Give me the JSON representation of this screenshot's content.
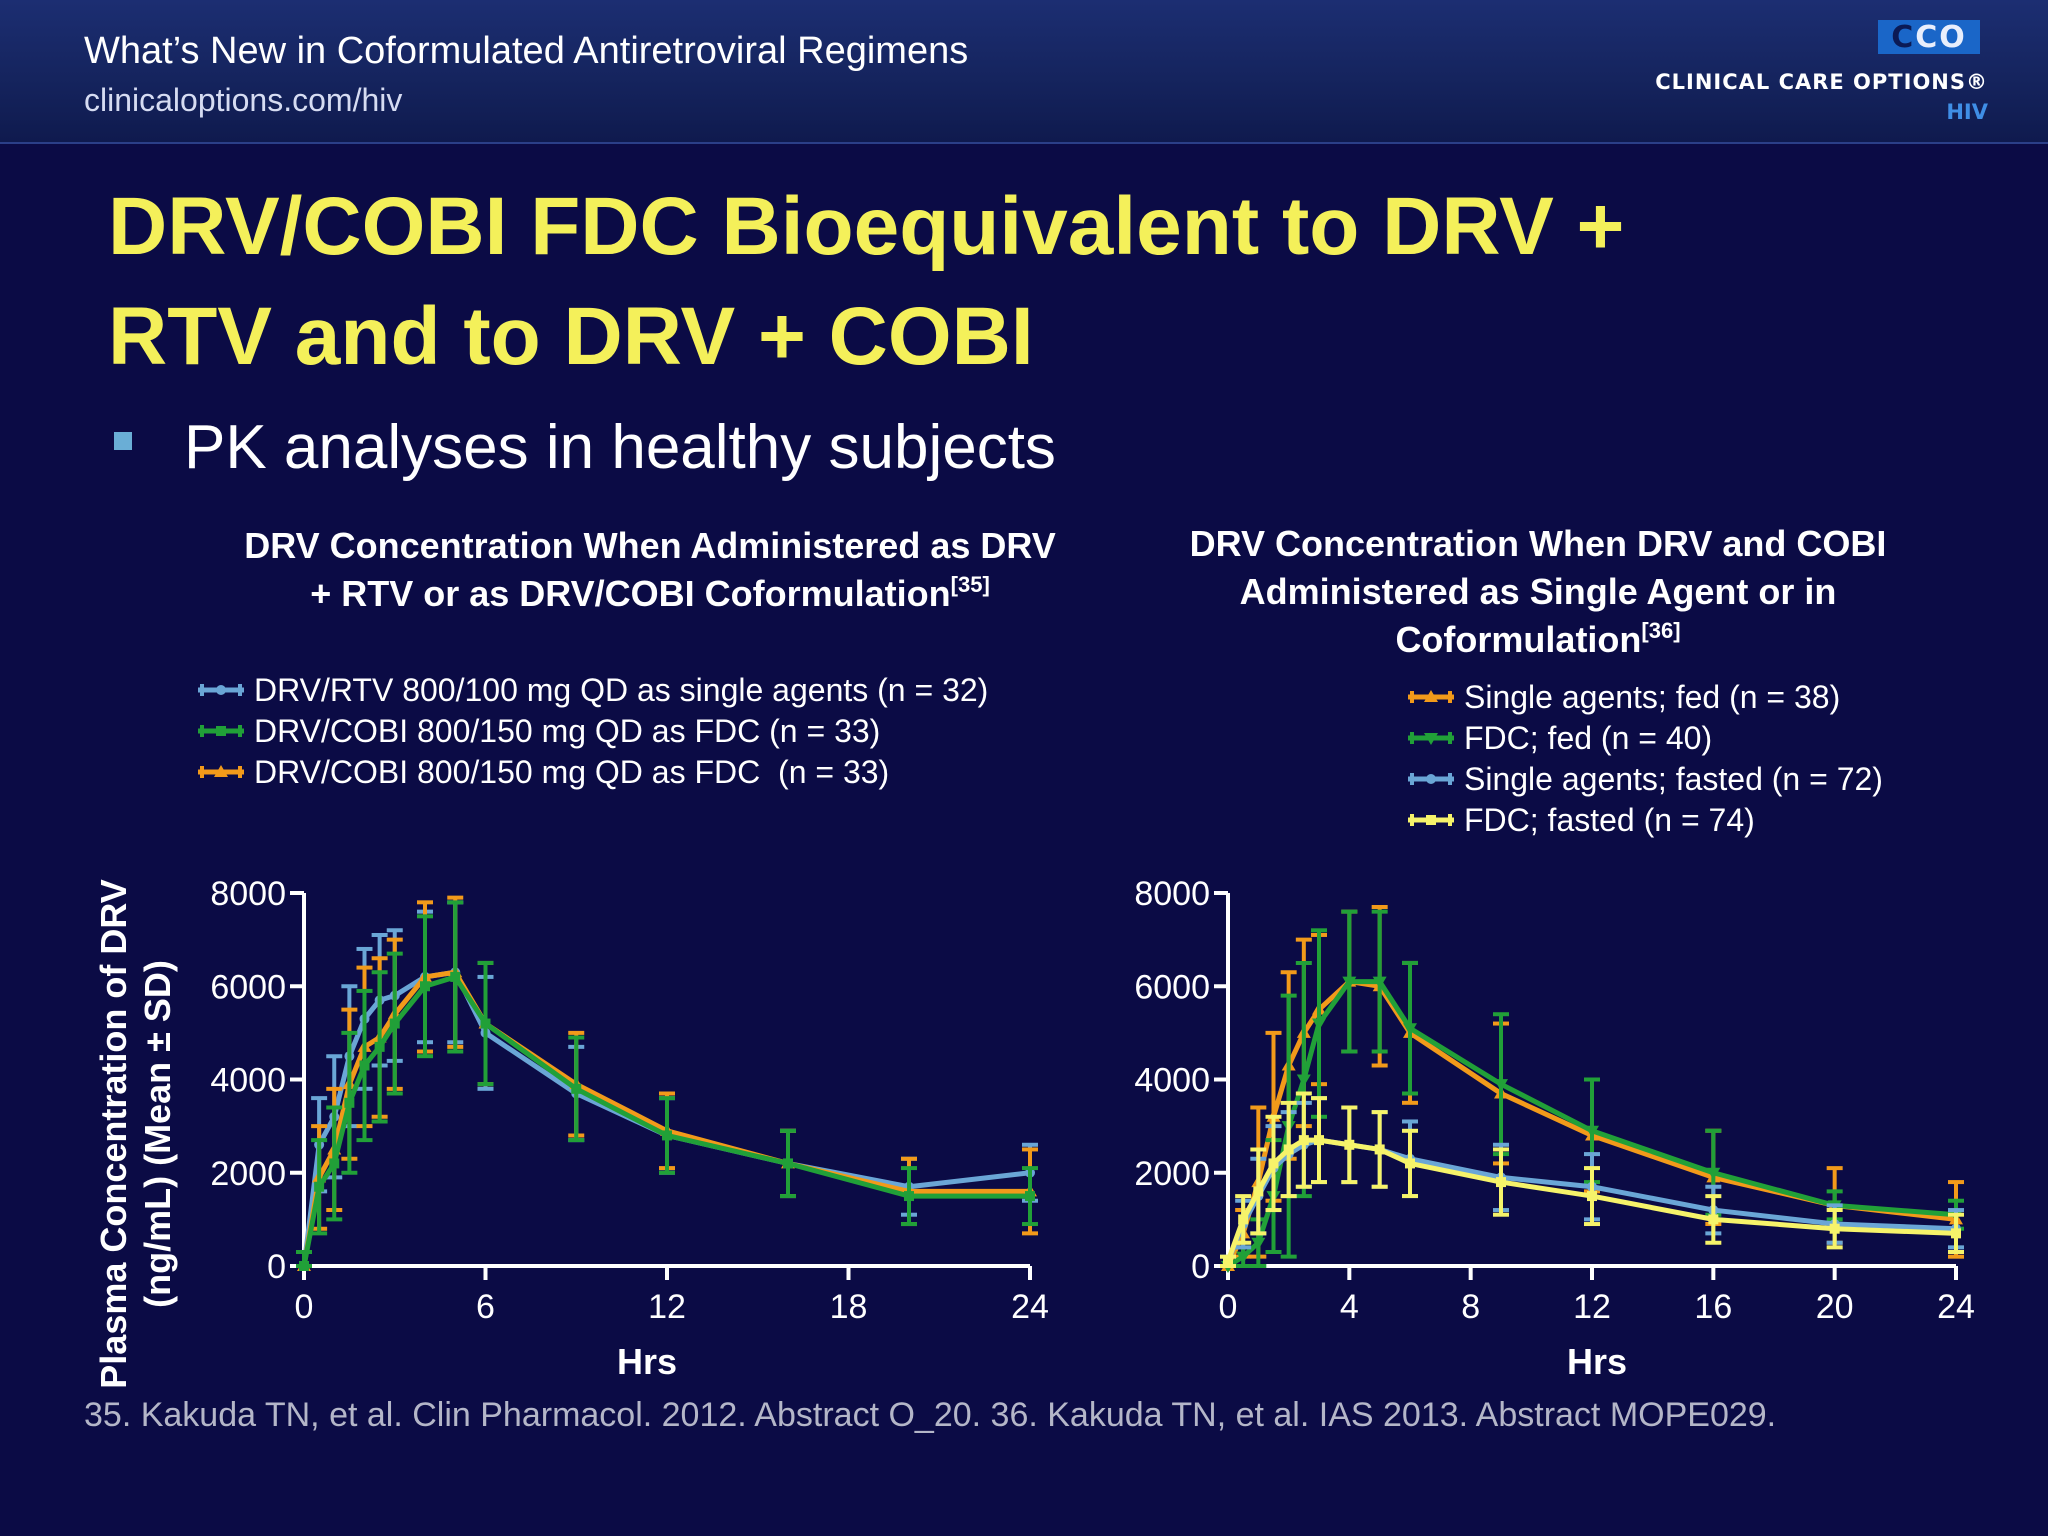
{
  "header": {
    "course_title": "What’s New in Coformulated Antiretroviral Regimens",
    "url": "clinicaloptions.com/hiv",
    "logo_mark_c": "C",
    "logo_mark_co": "CO",
    "logo_name": "CLINICAL CARE OPTIONS®",
    "logo_sub": "HIV"
  },
  "slide": {
    "title_line1": "DRV/COBI FDC Bioequivalent to DRV +",
    "title_line2": "RTV and to DRV + COBI",
    "bullet": "PK analyses in healthy subjects"
  },
  "shared_ylabel_line1": "Plasma Concentration of DRV",
  "shared_ylabel_line2": "(ng/mL) (Mean ± SD)",
  "footnote": "35. Kakuda TN, et al. Clin Pharmacol. 2012. Abstract O_20. 36. Kakuda TN, et al. IAS 2013. Abstract MOPE029.",
  "colors": {
    "blue": "#6aa6d6",
    "green": "#21a038",
    "orange": "#f29a1a",
    "yellow": "#f6f36a",
    "axis": "#ffffff",
    "title": "#f4f05a",
    "background": "#0b0b45"
  },
  "chart_data": [
    {
      "type": "line",
      "title_line1": "DRV Concentration When Administered as DRV",
      "title_line2": "+ RTV or as DRV/COBI Coformulation",
      "title_ref": "[35]",
      "xlabel": "Hrs",
      "ylabel": "Plasma Concentration of DRV (ng/mL) (Mean ± SD)",
      "xlim": [
        0,
        24
      ],
      "ylim": [
        0,
        8000
      ],
      "xticks": [
        0,
        6,
        12,
        18,
        24
      ],
      "yticks": [
        0,
        2000,
        4000,
        6000,
        8000
      ],
      "ytick_labels": [
        "0",
        "2000",
        "4000",
        "6000",
        "8000"
      ],
      "xtick_labels": [
        "0",
        "6",
        "12",
        "18",
        "24"
      ],
      "legend_position": "top",
      "series": [
        {
          "name": "DRV/RTV 800/100 mg QD as single agents (n = 32)",
          "color": "blue",
          "marker": "circle",
          "x": [
            0,
            0.5,
            1,
            1.5,
            2,
            2.5,
            3,
            4,
            5,
            6,
            9,
            12,
            16,
            20,
            24
          ],
          "y": [
            0,
            2600,
            3200,
            4500,
            5300,
            5700,
            5800,
            6200,
            6300,
            5000,
            3700,
            2800,
            2200,
            1700,
            2000
          ],
          "sd": [
            300,
            1000,
            1300,
            1500,
            1500,
            1400,
            1400,
            1400,
            1500,
            1200,
            1000,
            800,
            700,
            600,
            600
          ]
        },
        {
          "name": "DRV/COBI 800/150 mg QD as FDC (n = 33)",
          "color": "green",
          "marker": "square",
          "x": [
            0,
            0.5,
            1,
            1.5,
            2,
            2.5,
            3,
            4,
            5,
            6,
            9,
            12,
            16,
            20,
            24
          ],
          "y": [
            0,
            1700,
            2200,
            3500,
            4300,
            4700,
            5200,
            6000,
            6200,
            5200,
            3800,
            2800,
            2200,
            1500,
            1500
          ],
          "sd": [
            300,
            1000,
            1200,
            1500,
            1600,
            1600,
            1500,
            1500,
            1600,
            1300,
            1100,
            800,
            700,
            600,
            600
          ]
        },
        {
          "name": "DRV/COBI 800/150 mg QD as FDC  (n = 33)",
          "color": "orange",
          "marker": "triangle",
          "x": [
            0,
            0.5,
            1,
            1.5,
            2,
            2.5,
            3,
            4,
            5,
            6,
            9,
            12,
            16,
            20,
            24
          ],
          "y": [
            0,
            1900,
            2500,
            3900,
            4700,
            4900,
            5400,
            6200,
            6300,
            5200,
            3900,
            2900,
            2200,
            1600,
            1600
          ],
          "sd": [
            300,
            1100,
            1300,
            1600,
            1700,
            1700,
            1600,
            1600,
            1600,
            1300,
            1100,
            800,
            700,
            700,
            900
          ]
        }
      ]
    },
    {
      "type": "line",
      "title_line1": "DRV Concentration When DRV and COBI",
      "title_line2": "Administered as Single Agent or in",
      "title_line3": "Coformulation",
      "title_ref": "[36]",
      "xlabel": "Hrs",
      "xlim": [
        0,
        24
      ],
      "ylim": [
        0,
        8000
      ],
      "xticks": [
        0,
        4,
        8,
        12,
        16,
        20,
        24
      ],
      "yticks": [
        0,
        2000,
        4000,
        6000,
        8000
      ],
      "ytick_labels": [
        "0",
        "2000",
        "4000",
        "6000",
        "8000"
      ],
      "xtick_labels": [
        "0",
        "4",
        "8",
        "12",
        "16",
        "20",
        "24"
      ],
      "legend_position": "top-right",
      "series": [
        {
          "name": "Single agents; fed (n = 38)",
          "color": "orange",
          "marker": "triangle",
          "x": [
            0,
            0.5,
            1,
            1.5,
            2,
            2.5,
            3,
            4,
            5,
            6,
            9,
            12,
            16,
            20,
            24
          ],
          "y": [
            0,
            700,
            1800,
            3200,
            4300,
            5000,
            5500,
            6100,
            6000,
            5000,
            3700,
            2800,
            1900,
            1300,
            1000
          ],
          "sd": [
            0,
            500,
            1600,
            1800,
            2000,
            2000,
            1600,
            1500,
            1700,
            1500,
            1500,
            1200,
            1000,
            800,
            800
          ]
        },
        {
          "name": "FDC; fed (n = 40)",
          "color": "green",
          "marker": "down-triangle",
          "x": [
            0,
            0.5,
            1,
            1.5,
            2,
            2.5,
            3,
            4,
            5,
            6,
            9,
            12,
            16,
            20,
            24
          ],
          "y": [
            0,
            200,
            500,
            1500,
            3000,
            4000,
            5200,
            6100,
            6100,
            5100,
            3900,
            2900,
            2000,
            1300,
            1100
          ],
          "sd": [
            0,
            200,
            500,
            1200,
            2800,
            2500,
            2000,
            1500,
            1500,
            1400,
            1500,
            1100,
            900,
            300,
            300
          ]
        },
        {
          "name": "Single agents; fasted (n = 72)",
          "color": "blue",
          "marker": "circle",
          "x": [
            0,
            0.5,
            1,
            1.5,
            2,
            2.5,
            3,
            4,
            5,
            6,
            9,
            12,
            16,
            20,
            24
          ],
          "y": [
            100,
            900,
            1500,
            2100,
            2400,
            2600,
            2700,
            2600,
            2500,
            2300,
            1900,
            1700,
            1200,
            900,
            800
          ],
          "sd": [
            100,
            500,
            800,
            900,
            900,
            900,
            900,
            800,
            800,
            800,
            700,
            700,
            500,
            400,
            400
          ]
        },
        {
          "name": "FDC; fasted (n = 74)",
          "color": "yellow",
          "marker": "square",
          "x": [
            0,
            0.5,
            1,
            1.5,
            2,
            2.5,
            3,
            4,
            5,
            6,
            9,
            12,
            16,
            20,
            24
          ],
          "y": [
            100,
            1000,
            1600,
            2200,
            2500,
            2700,
            2700,
            2600,
            2500,
            2200,
            1800,
            1500,
            1000,
            800,
            700
          ],
          "sd": [
            100,
            500,
            900,
            1000,
            1000,
            1000,
            900,
            800,
            800,
            700,
            700,
            600,
            500,
            400,
            400
          ]
        }
      ]
    }
  ]
}
